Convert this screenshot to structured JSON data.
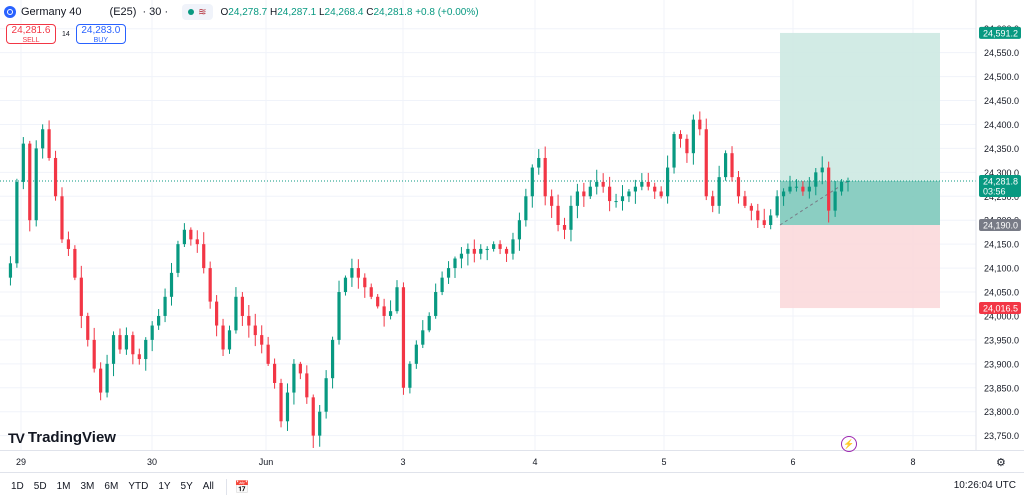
{
  "header": {
    "symbol": "Germany 40",
    "contract": "(E25)",
    "timeframe": "· 30 ·",
    "ohlc": {
      "o_label": "O",
      "o": "24,278.7",
      "h_label": "H",
      "h": "24,287.1",
      "l_label": "L",
      "l": "24,268.4",
      "c_label": "C",
      "c": "24,281.8",
      "change": "+0.8 (+0.00%)"
    }
  },
  "trade": {
    "sell_price": "24,281.6",
    "sell_label": "SELL",
    "spread": "14",
    "buy_price": "24,283.0",
    "buy_label": "BUY"
  },
  "logo": {
    "text": "TradingView"
  },
  "toolbar": {
    "ranges": [
      "1D",
      "5D",
      "1M",
      "3M",
      "6M",
      "YTD",
      "1Y",
      "5Y",
      "All"
    ],
    "clock": "10:26:04 UTC"
  },
  "chart_data": {
    "type": "candlestick",
    "ylim": [
      23720,
      24660
    ],
    "y_ticks": [
      24600,
      24550,
      24500,
      24450,
      24400,
      24350,
      24300,
      24250,
      24200,
      24150,
      24100,
      24050,
      24000,
      23950,
      23900,
      23850,
      23800,
      23750
    ],
    "y_tick_labels": [
      "24,600.0",
      "24,550.0",
      "24,500.0",
      "24,450.0",
      "24,400.0",
      "24,350.0",
      "24,300.0",
      "24,250.0",
      "24,200.0",
      "24,150.0",
      "24,100.0",
      "24,050.0",
      "24,000.0",
      "23,950.0",
      "23,900.0",
      "23,850.0",
      "23,800.0",
      "23,750.0"
    ],
    "x_labels": [
      "29",
      "30",
      "Jun",
      "3",
      "4",
      "5",
      "6",
      "8"
    ],
    "current_price": {
      "value": 24281.8,
      "label": "24,281.8",
      "countdown": "03:56"
    },
    "position": {
      "take_profit": 24591.2,
      "take_profit_label": "24,591.2",
      "entry": 24190.0,
      "entry_label": "24,190.0",
      "stop_loss": 24016.5,
      "stop_loss_label": "24,016.5"
    },
    "colors": {
      "up": "#089981",
      "down": "#f23645",
      "profit_zone": "#cde9e2",
      "loss_zone": "#fbd9dc",
      "price_line": "#089981",
      "sl_tag": "#f23645",
      "entry_tag": "#787b86"
    },
    "path": [
      24080,
      24110,
      24280,
      24360,
      24200,
      24350,
      24390,
      24330,
      24250,
      24160,
      24140,
      24080,
      24000,
      23950,
      23890,
      23840,
      23900,
      23960,
      23930,
      23960,
      23920,
      23910,
      23950,
      23980,
      24000,
      24040,
      24090,
      24150,
      24180,
      24160,
      24150,
      24100,
      24030,
      23980,
      23930,
      23970,
      24040,
      24000,
      23980,
      23960,
      23940,
      23900,
      23860,
      23780,
      23840,
      23900,
      23880,
      23830,
      23750,
      23800,
      23870,
      23950,
      24050,
      24080,
      24100,
      24080,
      24060,
      24040,
      24020,
      24000,
      24010,
      24060,
      23850,
      23900,
      23940,
      23970,
      24000,
      24050,
      24080,
      24100,
      24120,
      24130,
      24140,
      24130,
      24140,
      24140,
      24150,
      24140,
      24130,
      24160,
      24200,
      24250,
      24310,
      24330,
      24250,
      24230,
      24190,
      24180,
      24230,
      24260,
      24250,
      24270,
      24280,
      24270,
      24240,
      24240,
      24250,
      24260,
      24270,
      24280,
      24270,
      24260,
      24250,
      24310,
      24380,
      24370,
      24340,
      24410,
      24390,
      24250,
      24230,
      24290,
      24340,
      24290,
      24250,
      24230,
      24220,
      24200,
      24190,
      24210,
      24250,
      24260,
      24270,
      24270,
      24260,
      24270,
      24300,
      24310,
      24220,
      24260,
      24280,
      24282
    ]
  }
}
